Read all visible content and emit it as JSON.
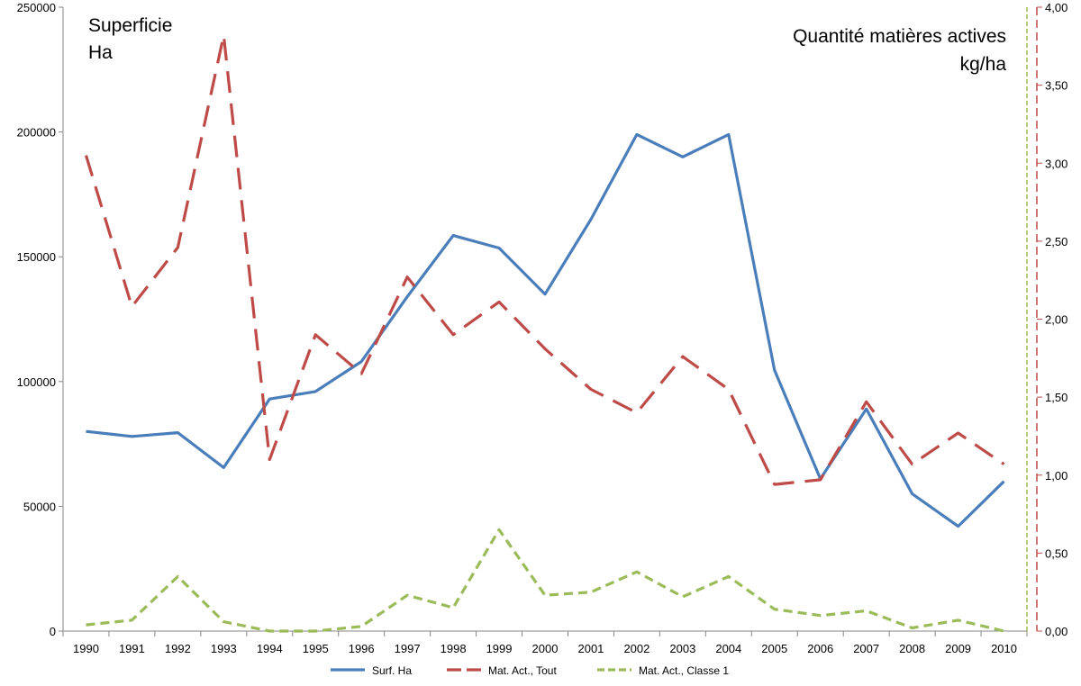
{
  "chart_data": {
    "type": "line",
    "x": [
      "1990",
      "1991",
      "1992",
      "1993",
      "1994",
      "1995",
      "1996",
      "1997",
      "1998",
      "1999",
      "2000",
      "2001",
      "2002",
      "2003",
      "2004",
      "2005",
      "2006",
      "2007",
      "2008",
      "2009",
      "2010"
    ],
    "left_axis": {
      "title_lines": [
        "Superficie",
        "Ha"
      ],
      "ylim": [
        0,
        250000
      ],
      "ticks": [
        "0",
        "50000",
        "100000",
        "150000",
        "200000",
        "250000"
      ]
    },
    "right_axis": {
      "title_lines": [
        "Quantité matières actives",
        "kg/ha"
      ],
      "ylim": [
        0,
        4
      ],
      "ticks": [
        "0,00",
        "0,50",
        "1,00",
        "1,50",
        "2,00",
        "2,50",
        "3,00",
        "3,50",
        "4,00"
      ]
    },
    "series": [
      {
        "name": "Surf. Ha",
        "axis": "left",
        "color": "#4a7ebb",
        "style": "solid",
        "values": [
          80000,
          78000,
          79500,
          65500,
          93000,
          96000,
          108000,
          134000,
          158500,
          153500,
          135000,
          165000,
          199000,
          190000,
          199000,
          104500,
          61000,
          89000,
          55000,
          42000,
          60000
        ]
      },
      {
        "name": "Mat. Act., Tout",
        "axis": "right",
        "color": "#be4b48",
        "style": "long-dash",
        "values": [
          3.05,
          2.08,
          2.46,
          3.82,
          1.1,
          1.9,
          1.65,
          2.27,
          1.9,
          2.11,
          1.81,
          1.55,
          1.4,
          1.76,
          1.55,
          0.94,
          0.97,
          1.47,
          1.07,
          1.27,
          1.07
        ]
      },
      {
        "name": "Mat. Act., Classe 1",
        "axis": "right",
        "color": "#9bbb59",
        "style": "short-dash",
        "values": [
          0.04,
          0.07,
          0.35,
          0.06,
          0.0,
          0.0,
          0.03,
          0.23,
          0.15,
          0.65,
          0.23,
          0.25,
          0.38,
          0.22,
          0.35,
          0.14,
          0.1,
          0.13,
          0.02,
          0.07,
          0.0
        ]
      }
    ],
    "grid": false,
    "legend": "bottom"
  }
}
